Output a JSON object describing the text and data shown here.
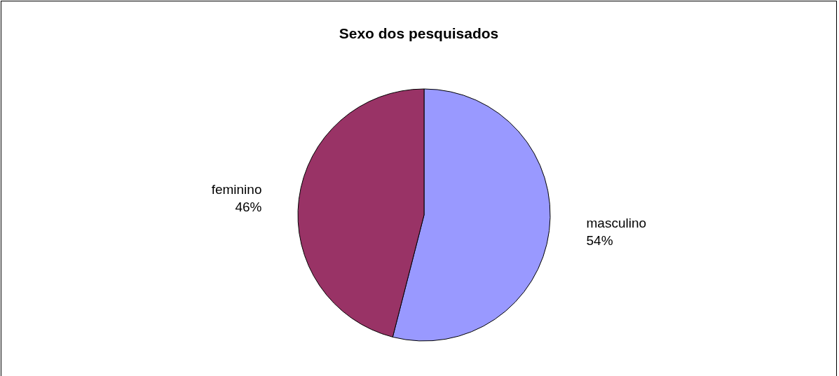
{
  "chart_data": {
    "type": "pie",
    "title": "Sexo dos pesquisados",
    "categories": [
      "masculino",
      "feminino"
    ],
    "values": [
      54,
      46
    ],
    "colors": [
      "#9999ff",
      "#993366"
    ],
    "value_labels": [
      "54%",
      "46%"
    ],
    "legend": false
  }
}
